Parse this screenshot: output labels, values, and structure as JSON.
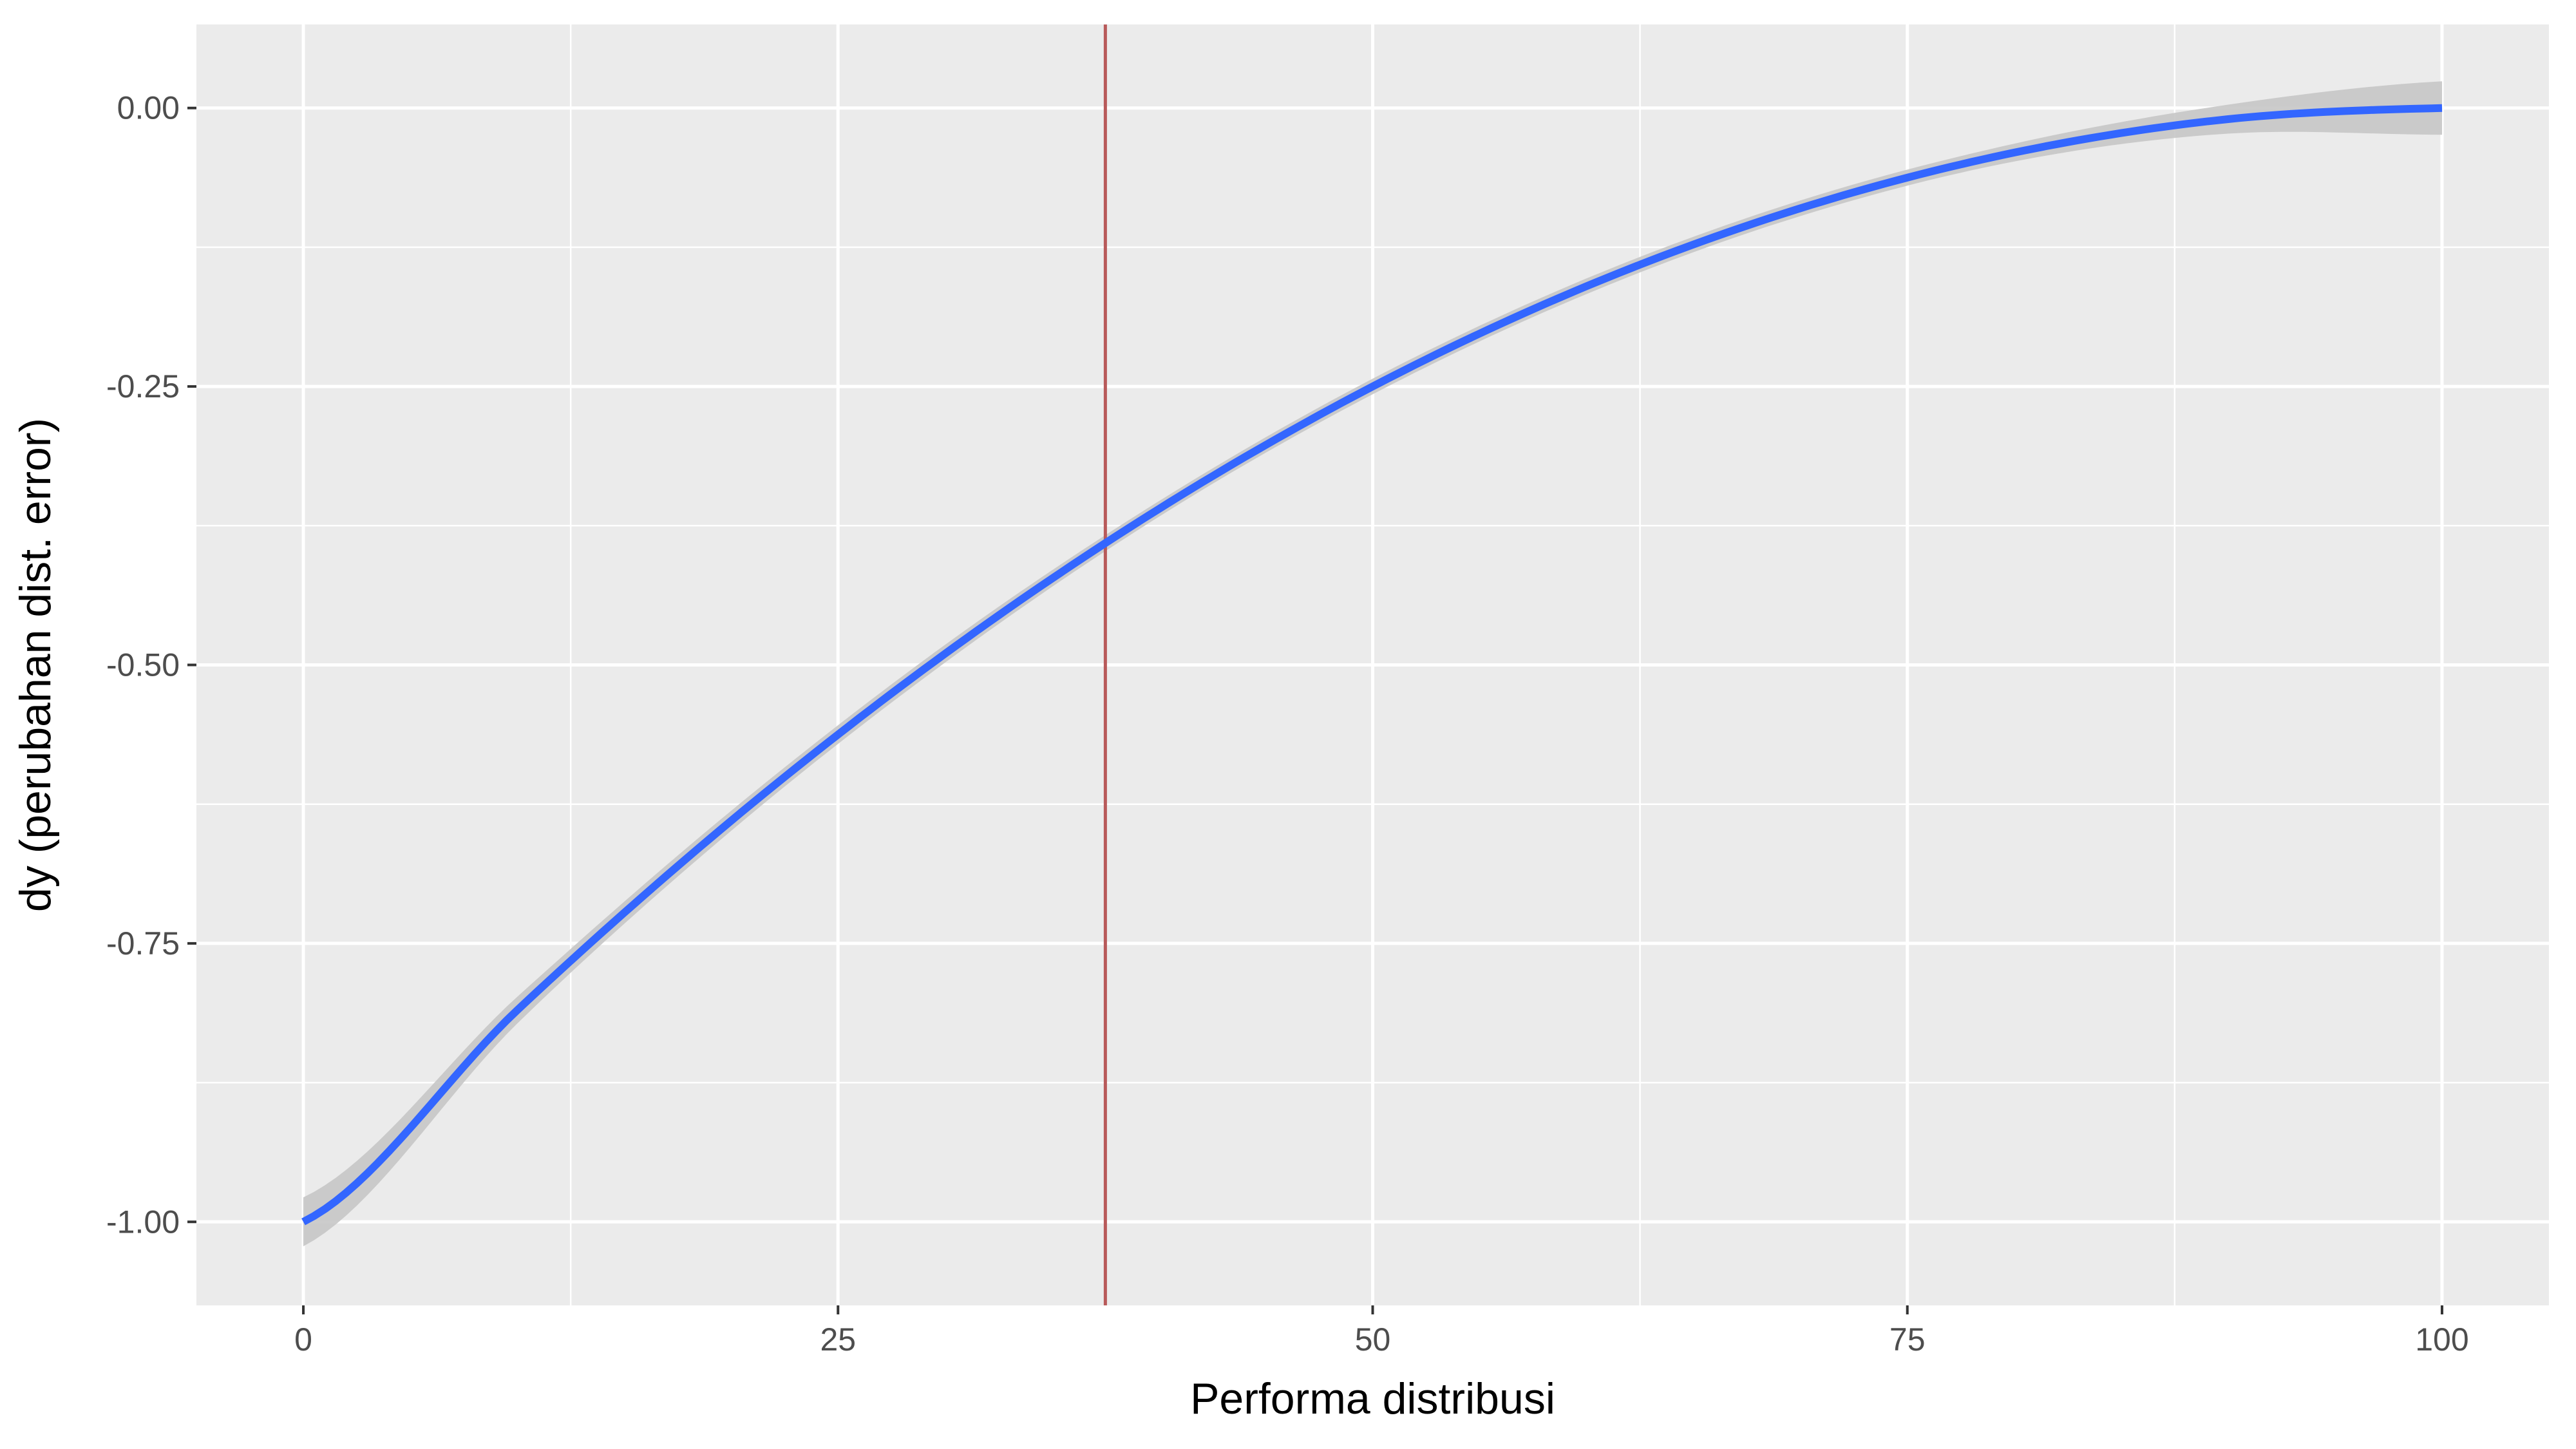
{
  "chart_data": {
    "type": "line",
    "title": "",
    "xlabel": "Performa distribusi",
    "ylabel": "dy (perubahan dist. error)",
    "xlim": [
      -5,
      105
    ],
    "ylim": [
      -1.075,
      0.075
    ],
    "x_ticks": [
      0,
      25,
      50,
      75,
      100
    ],
    "x_tick_labels": [
      "0",
      "25",
      "50",
      "75",
      "100"
    ],
    "y_ticks": [
      0,
      -0.25,
      -0.5,
      -0.75,
      -1
    ],
    "y_tick_labels": [
      "0.00",
      "-0.25",
      "-0.50",
      "-0.75",
      "-1.00"
    ],
    "x_minor": [
      12.5,
      37.5,
      62.5,
      87.5
    ],
    "y_minor": [
      -0.125,
      -0.375,
      -0.625,
      -0.875
    ],
    "grid": true,
    "legend": "none",
    "series": [
      {
        "x": [
          0,
          10,
          20,
          30,
          40,
          50,
          60,
          70,
          80,
          90,
          100
        ],
        "y": [
          -1.0,
          -0.81,
          -0.64,
          -0.49,
          -0.36,
          -0.25,
          -0.16,
          -0.09,
          -0.04,
          -0.01,
          0.0
        ],
        "ci": [
          0.022,
          0.012,
          0.009,
          0.008,
          0.007,
          0.007,
          0.007,
          0.007,
          0.008,
          0.013,
          0.024
        ],
        "color": "#3366ff",
        "ci_color": "#c7c7c7"
      }
    ],
    "vline": {
      "x": 37.5,
      "color": "#b85a5a"
    },
    "panel_background": "#ebebeb",
    "grid_color": "#ffffff"
  }
}
